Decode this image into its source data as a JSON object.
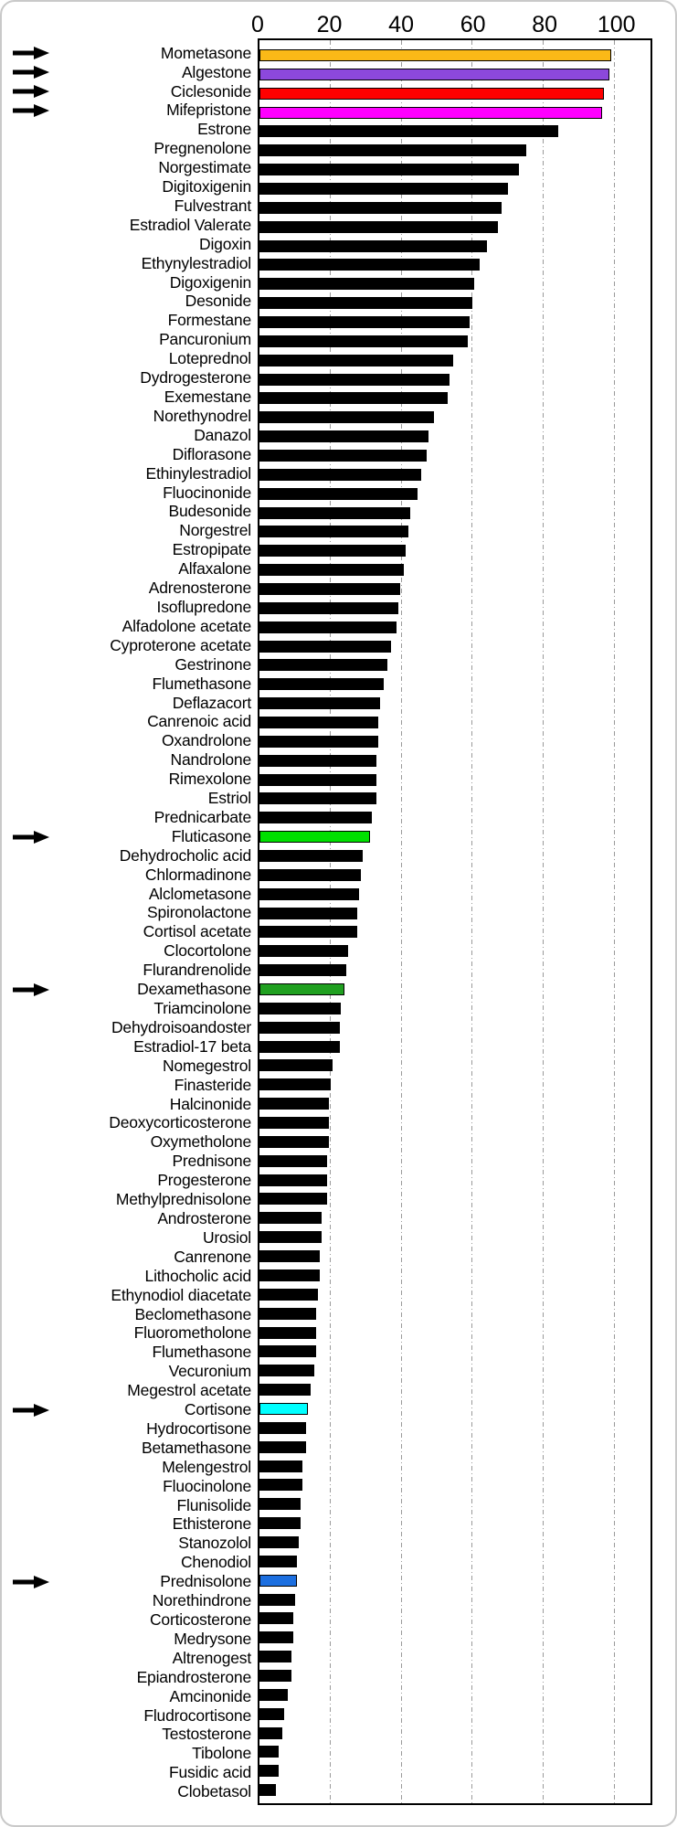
{
  "chart_data": {
    "type": "bar",
    "orientation": "horizontal",
    "title": "",
    "xlabel": "",
    "ylabel": "",
    "xlim": [
      0,
      110
    ],
    "xticks": [
      0,
      20,
      40,
      60,
      80,
      100
    ],
    "grid": "vertical dash-dot gridlines at 20,40,60,80,100",
    "gridline_color": "#9a9a9a",
    "default_bar_color": "#000000",
    "arrow_color": "#000000",
    "plot_border_color": "#000000",
    "items": [
      {
        "label": "Mometasone",
        "value": 99,
        "color": "#FBB917",
        "arrow": true
      },
      {
        "label": "Algestone",
        "value": 98.5,
        "color": "#8C48DC",
        "arrow": true
      },
      {
        "label": "Ciclesonide",
        "value": 97,
        "color": "#FF0000",
        "arrow": true
      },
      {
        "label": "Mifepristone",
        "value": 96.5,
        "color": "#FF00FF",
        "arrow": true
      },
      {
        "label": "Estrone",
        "value": 84
      },
      {
        "label": "Pregnenolone",
        "value": 75
      },
      {
        "label": "Norgestimate",
        "value": 73
      },
      {
        "label": "Digitoxigenin",
        "value": 70
      },
      {
        "label": "Fulvestrant",
        "value": 68
      },
      {
        "label": "Estradiol Valerate",
        "value": 67
      },
      {
        "label": "Digoxin",
        "value": 64
      },
      {
        "label": "Ethynylestradiol",
        "value": 62
      },
      {
        "label": "Digoxigenin",
        "value": 60.5
      },
      {
        "label": "Desonide",
        "value": 60
      },
      {
        "label": "Formestane",
        "value": 59
      },
      {
        "label": "Pancuronium",
        "value": 58.5
      },
      {
        "label": "Loteprednol",
        "value": 54.5
      },
      {
        "label": "Dydrogesterone",
        "value": 53.5
      },
      {
        "label": "Exemestane",
        "value": 53
      },
      {
        "label": "Norethynodrel",
        "value": 49
      },
      {
        "label": "Danazol",
        "value": 47.5
      },
      {
        "label": "Diflorasone",
        "value": 47
      },
      {
        "label": "Ethinylestradiol",
        "value": 45.5
      },
      {
        "label": "Fluocinonide",
        "value": 44.5
      },
      {
        "label": "Budesonide",
        "value": 42.5
      },
      {
        "label": "Norgestrel",
        "value": 42
      },
      {
        "label": "Estropipate",
        "value": 41
      },
      {
        "label": "Alfaxalone",
        "value": 40.5
      },
      {
        "label": "Adrenosterone",
        "value": 39.5
      },
      {
        "label": "Isoflupredone",
        "value": 39
      },
      {
        "label": "Alfadolone acetate",
        "value": 38.5
      },
      {
        "label": "Cyproterone acetate",
        "value": 37
      },
      {
        "label": "Gestrinone",
        "value": 36
      },
      {
        "label": "Flumethasone",
        "value": 35
      },
      {
        "label": "Deflazacort",
        "value": 34
      },
      {
        "label": "Canrenoic acid",
        "value": 33.5
      },
      {
        "label": "Oxandrolone",
        "value": 33.5
      },
      {
        "label": "Nandrolone",
        "value": 33
      },
      {
        "label": "Rimexolone",
        "value": 33
      },
      {
        "label": "Estriol",
        "value": 33
      },
      {
        "label": "Prednicarbate",
        "value": 31.5
      },
      {
        "label": "Fluticasone",
        "value": 31,
        "color": "#00E000",
        "arrow": true
      },
      {
        "label": "Dehydrocholic acid",
        "value": 29
      },
      {
        "label": "Chlormadinone",
        "value": 28.5
      },
      {
        "label": "Alclometasone",
        "value": 28
      },
      {
        "label": "Spironolactone",
        "value": 27.5
      },
      {
        "label": "Cortisol acetate",
        "value": 27.5
      },
      {
        "label": "Clocortolone",
        "value": 25
      },
      {
        "label": "Flurandrenolide",
        "value": 24.5
      },
      {
        "label": "Dexamethasone",
        "value": 24,
        "color": "#20A020",
        "arrow": true
      },
      {
        "label": "Triamcinolone",
        "value": 23
      },
      {
        "label": "Dehydroisoandoster",
        "value": 22.5
      },
      {
        "label": "Estradiol-17 beta",
        "value": 22.5
      },
      {
        "label": "Nomegestrol",
        "value": 20.5
      },
      {
        "label": "Finasteride",
        "value": 20
      },
      {
        "label": "Halcinonide",
        "value": 19.5
      },
      {
        "label": "Deoxycorticosterone",
        "value": 19.5
      },
      {
        "label": "Oxymetholone",
        "value": 19.5
      },
      {
        "label": "Prednisone",
        "value": 19
      },
      {
        "label": "Progesterone",
        "value": 19
      },
      {
        "label": "Methylprednisolone",
        "value": 19
      },
      {
        "label": "Androsterone",
        "value": 17.5
      },
      {
        "label": "Urosiol",
        "value": 17.5
      },
      {
        "label": "Canrenone",
        "value": 17
      },
      {
        "label": "Lithocholic acid",
        "value": 17
      },
      {
        "label": "Ethynodiol diacetate",
        "value": 16.5
      },
      {
        "label": "Beclomethasone",
        "value": 16
      },
      {
        "label": "Fluorometholone",
        "value": 16
      },
      {
        "label": "Flumethasone",
        "value": 16
      },
      {
        "label": "Vecuronium",
        "value": 15.5
      },
      {
        "label": "Megestrol acetate",
        "value": 14.5
      },
      {
        "label": "Cortisone",
        "value": 13.5,
        "color": "#00FFFF",
        "arrow": true
      },
      {
        "label": "Hydrocortisone",
        "value": 13
      },
      {
        "label": "Betamethasone",
        "value": 13
      },
      {
        "label": "Melengestrol",
        "value": 12
      },
      {
        "label": "Fluocinolone",
        "value": 12
      },
      {
        "label": "Flunisolide",
        "value": 11.5
      },
      {
        "label": "Ethisterone",
        "value": 11.5
      },
      {
        "label": "Stanozolol",
        "value": 11
      },
      {
        "label": "Chenodiol",
        "value": 10.5
      },
      {
        "label": "Prednisolone",
        "value": 10.5,
        "color": "#1C6FE0",
        "arrow": true
      },
      {
        "label": "Norethindrone",
        "value": 10
      },
      {
        "label": "Corticosterone",
        "value": 9.5
      },
      {
        "label": "Medrysone",
        "value": 9.5
      },
      {
        "label": "Altrenogest",
        "value": 9
      },
      {
        "label": "Epiandrosterone",
        "value": 9
      },
      {
        "label": "Amcinonide",
        "value": 8
      },
      {
        "label": "Fludrocortisone",
        "value": 7
      },
      {
        "label": "Testosterone",
        "value": 6.5
      },
      {
        "label": "Tibolone",
        "value": 5.5
      },
      {
        "label": "Fusidic acid",
        "value": 5.5
      },
      {
        "label": "Clobetasol",
        "value": 4.5
      }
    ]
  }
}
